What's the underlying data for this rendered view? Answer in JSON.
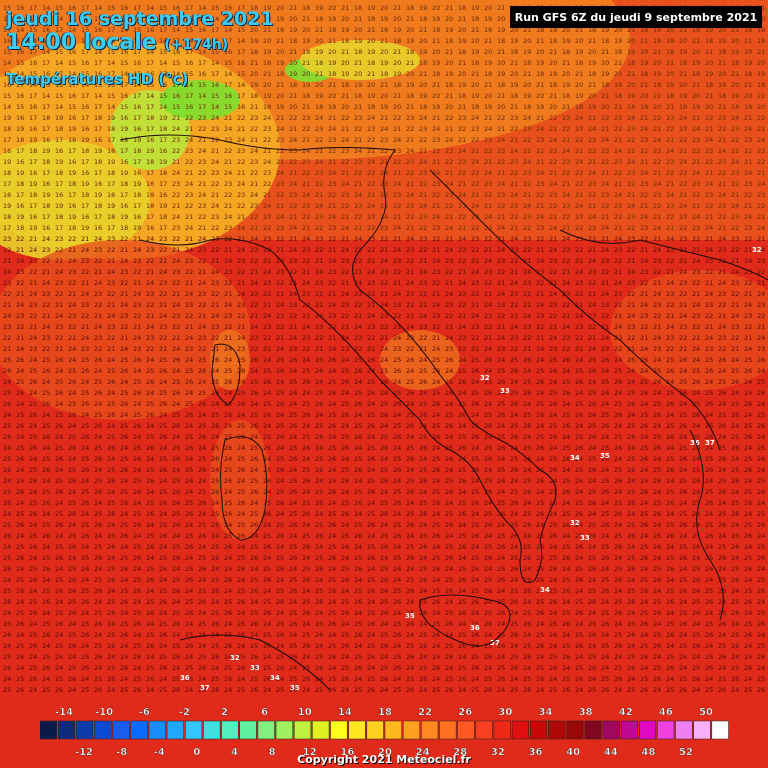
{
  "header": {
    "date": "jeudi 16 septembre 2021",
    "time": "14:00 locale",
    "lead": "(+174h)",
    "variable": "Températures HD (°c)",
    "run": "Run GFS 6Z du jeudi 9 septembre 2021"
  },
  "footer": {
    "copyright": "Copyright 2021 Meteociel.fr"
  },
  "legend": {
    "upper_labels": [
      "-14",
      "-10",
      "-6",
      "-2",
      "2",
      "6",
      "10",
      "14",
      "18",
      "22",
      "26",
      "30",
      "34",
      "38",
      "42",
      "46",
      "50"
    ],
    "lower_labels": [
      "-12",
      "-8",
      "-4",
      "0",
      "4",
      "8",
      "12",
      "16",
      "20",
      "24",
      "28",
      "32",
      "36",
      "40",
      "44",
      "48",
      "52"
    ],
    "colors": [
      "#0a1a4a",
      "#0b2a7a",
      "#0c3aa8",
      "#0a4ad0",
      "#1a5cf0",
      "#0a6cff",
      "#1a8cff",
      "#20a8ff",
      "#30c8ff",
      "#40e0e0",
      "#50f0c0",
      "#60f0a0",
      "#80f080",
      "#a0f060",
      "#c0f040",
      "#e0f020",
      "#ffff20",
      "#ffe820",
      "#ffd020",
      "#ffb820",
      "#ffa020",
      "#ff8820",
      "#ff7020",
      "#ff5820",
      "#f84020",
      "#f02818",
      "#e01010",
      "#c80808",
      "#b00808",
      "#980808",
      "#800820",
      "#a00860",
      "#c00890",
      "#e008c0",
      "#f040e0",
      "#f080f0",
      "#f8b0f8",
      "#ffffff"
    ]
  },
  "map": {
    "field_colors": {
      "hot": "#e02a1a",
      "warm": "#e8501c",
      "mild": "#f07a1e",
      "cool": "#f5a623",
      "cooler": "#e8d22a",
      "cold": "#bde63a",
      "coldest": "#7de02e"
    },
    "label_color_hot": "#5a0a05",
    "label_color_mild": "#6a2a05",
    "hotspot_labels": [
      "32",
      "33",
      "34",
      "35",
      "36",
      "37"
    ]
  }
}
